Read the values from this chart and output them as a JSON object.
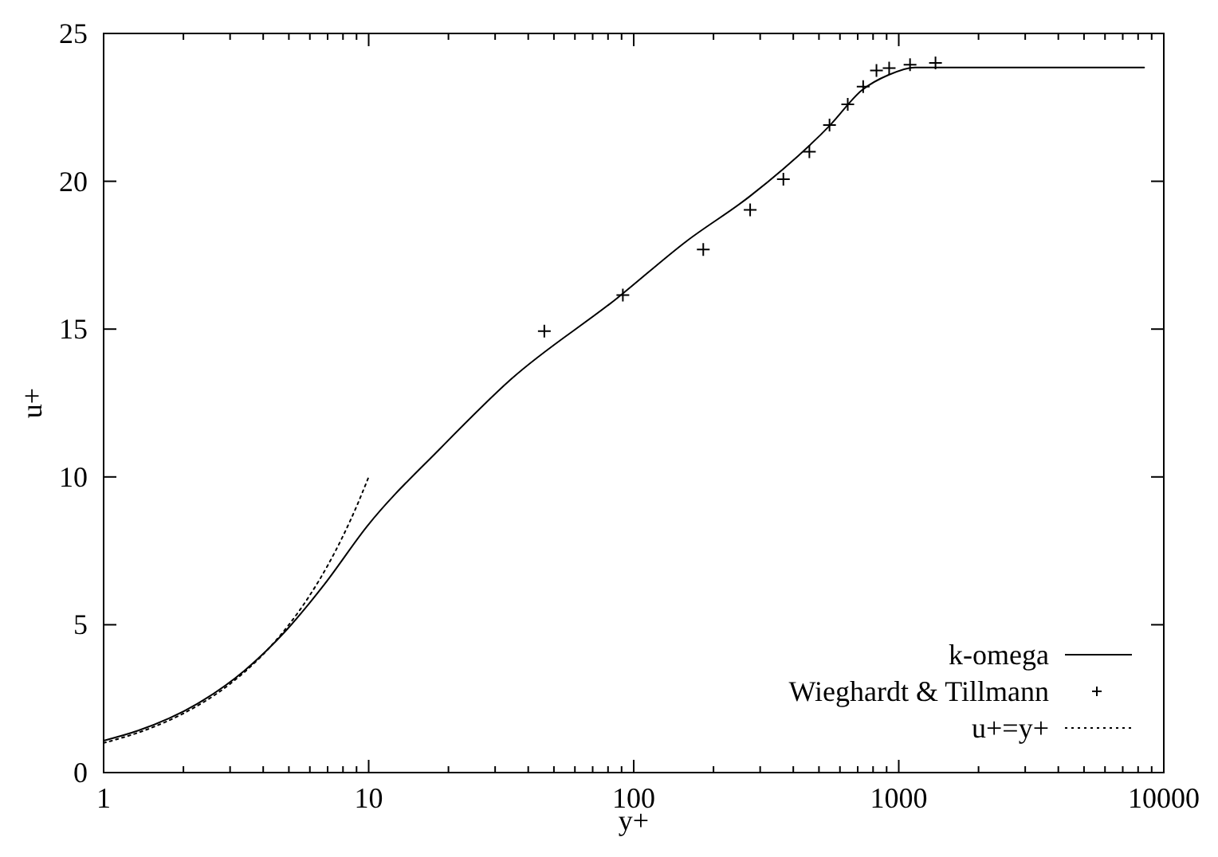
{
  "chart_data": {
    "type": "line",
    "xlabel": "y+",
    "ylabel": "u+",
    "log": "x",
    "xlim": [
      1,
      10000
    ],
    "ylim": [
      0,
      25
    ],
    "xticks": [
      1,
      {
        "value": 2,
        "label": null
      },
      {
        "value": 3,
        "label": null
      },
      {
        "value": 4,
        "label": null
      },
      {
        "value": 5,
        "label": null
      },
      {
        "value": 6,
        "label": null
      },
      {
        "value": 7,
        "label": null
      },
      {
        "value": 8,
        "label": null
      },
      {
        "value": 9,
        "label": null
      },
      10,
      {
        "value": 20,
        "label": null
      },
      {
        "value": 30,
        "label": null
      },
      {
        "value": 40,
        "label": null
      },
      {
        "value": 50,
        "label": null
      },
      {
        "value": 60,
        "label": null
      },
      {
        "value": 70,
        "label": null
      },
      {
        "value": 80,
        "label": null
      },
      {
        "value": 90,
        "label": null
      },
      100,
      {
        "value": 200,
        "label": null
      },
      {
        "value": 300,
        "label": null
      },
      {
        "value": 400,
        "label": null
      },
      {
        "value": 500,
        "label": null
      },
      {
        "value": 600,
        "label": null
      },
      {
        "value": 700,
        "label": null
      },
      {
        "value": 800,
        "label": null
      },
      {
        "value": 900,
        "label": null
      },
      1000,
      {
        "value": 2000,
        "label": null
      },
      {
        "value": 3000,
        "label": null
      },
      {
        "value": 4000,
        "label": null
      },
      {
        "value": 5000,
        "label": null
      },
      {
        "value": 6000,
        "label": null
      },
      {
        "value": 7000,
        "label": null
      },
      {
        "value": 8000,
        "label": null
      },
      {
        "value": 9000,
        "label": null
      },
      10000
    ],
    "yticks": [
      0,
      5,
      10,
      15,
      20,
      25
    ],
    "grid": false,
    "legend": "bottom right",
    "series": [
      {
        "name": "k-omega",
        "color": "#000000",
        "line_style": "solid",
        "marker": "none",
        "x": [
          1,
          1.35,
          2.25,
          3.4,
          4.93,
          6.81,
          9.86,
          18.8,
          34.4,
          86.7,
          158,
          275,
          551,
          726,
          916,
          1153,
          8430
        ],
        "values": [
          1.08,
          1.42,
          2.32,
          3.45,
          4.85,
          6.37,
          8.33,
          11.0,
          13.3,
          16.05,
          17.97,
          19.5,
          21.9,
          23.08,
          23.6,
          23.85,
          23.85
        ]
      },
      {
        "name": "Wieghardt & Tillmann",
        "type": "scatter",
        "color": "#000000",
        "marker": "cross",
        "x": [
          46,
          91,
          183,
          275,
          367,
          460,
          548,
          642,
          734,
          824,
          920,
          1103,
          1376
        ],
        "values": [
          14.93,
          16.15,
          17.69,
          19.03,
          20.07,
          21.0,
          21.9,
          22.6,
          23.2,
          23.75,
          23.83,
          23.94,
          24.0
        ]
      },
      {
        "name": "u+=y+",
        "color": "#000000",
        "line_style": "dotted",
        "marker": "none",
        "x": [
          1,
          1.5,
          2,
          3,
          4,
          5,
          6,
          7,
          8,
          9,
          10
        ],
        "values": [
          1,
          1.5,
          2,
          3,
          4,
          5,
          6,
          7,
          8,
          9,
          10
        ]
      }
    ]
  }
}
